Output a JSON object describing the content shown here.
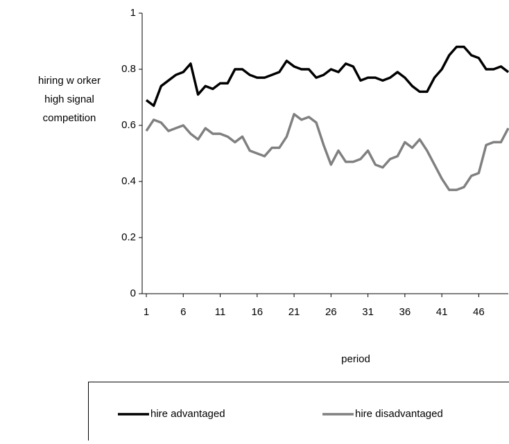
{
  "chart_data": {
    "type": "line",
    "ylabel": [
      "hiring  w orker",
      "high signal",
      "competition"
    ],
    "xlabel": "period",
    "x": [
      1,
      2,
      3,
      4,
      5,
      6,
      7,
      8,
      9,
      10,
      11,
      12,
      13,
      14,
      15,
      16,
      17,
      18,
      19,
      20,
      21,
      22,
      23,
      24,
      25,
      26,
      27,
      28,
      29,
      30,
      31,
      32,
      33,
      34,
      35,
      36,
      37,
      38,
      39,
      40,
      41,
      42,
      43,
      44,
      45,
      46,
      47,
      48,
      49,
      50
    ],
    "xlim": [
      1,
      50
    ],
    "xticks": [
      1,
      6,
      11,
      16,
      21,
      26,
      31,
      36,
      41,
      46
    ],
    "ylim": [
      0,
      1
    ],
    "yticks": [
      0,
      0.2,
      0.4,
      0.6,
      0.8,
      1
    ],
    "series": [
      {
        "name": "hire advantaged",
        "color": "#000000",
        "values": [
          0.69,
          0.67,
          0.74,
          0.76,
          0.78,
          0.79,
          0.82,
          0.71,
          0.74,
          0.73,
          0.75,
          0.75,
          0.8,
          0.8,
          0.78,
          0.77,
          0.77,
          0.78,
          0.79,
          0.83,
          0.81,
          0.8,
          0.8,
          0.77,
          0.78,
          0.8,
          0.79,
          0.82,
          0.81,
          0.76,
          0.77,
          0.77,
          0.76,
          0.77,
          0.79,
          0.77,
          0.74,
          0.72,
          0.72,
          0.77,
          0.8,
          0.85,
          0.88,
          0.88,
          0.85,
          0.84,
          0.8,
          0.8,
          0.81,
          0.79
        ]
      },
      {
        "name": "hire disadvantaged",
        "color": "#808080",
        "values": [
          0.58,
          0.62,
          0.61,
          0.58,
          0.59,
          0.6,
          0.57,
          0.55,
          0.59,
          0.57,
          0.57,
          0.56,
          0.54,
          0.56,
          0.51,
          0.5,
          0.49,
          0.52,
          0.52,
          0.56,
          0.64,
          0.62,
          0.63,
          0.61,
          0.53,
          0.46,
          0.51,
          0.47,
          0.47,
          0.48,
          0.51,
          0.46,
          0.45,
          0.48,
          0.49,
          0.54,
          0.52,
          0.55,
          0.51,
          0.46,
          0.41,
          0.37,
          0.37,
          0.38,
          0.42,
          0.43,
          0.53,
          0.54,
          0.54,
          0.59
        ]
      }
    ]
  }
}
